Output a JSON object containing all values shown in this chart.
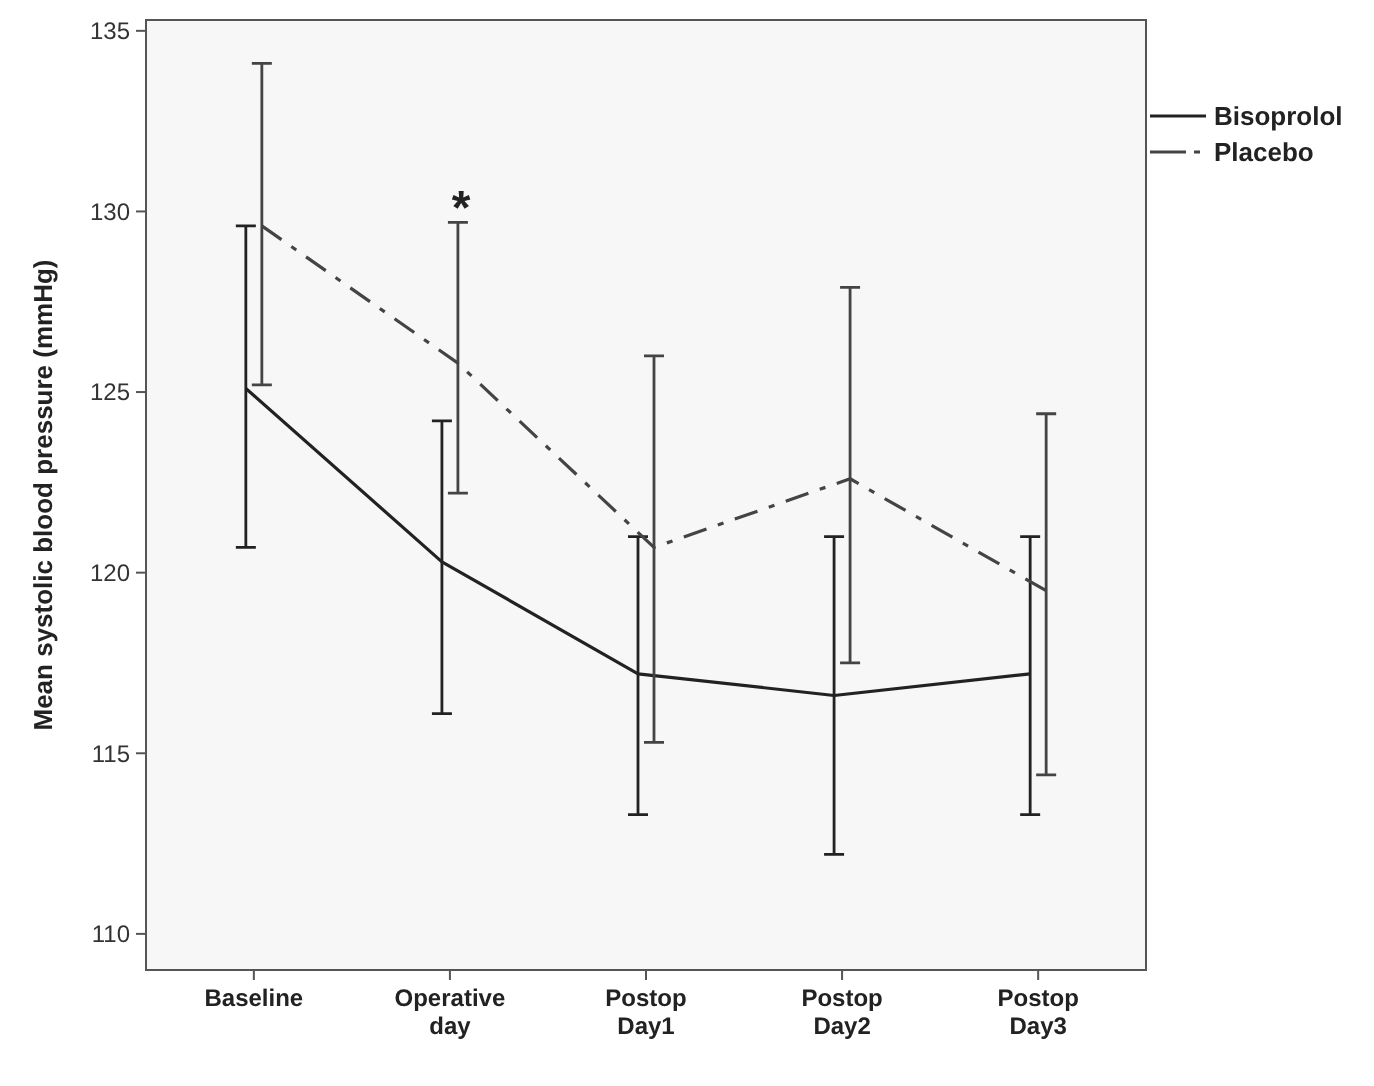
{
  "chart_data": {
    "type": "line",
    "ylabel": "Mean systolic blood pressure (mmHg)",
    "categories": [
      "Baseline",
      "Operative day",
      "Postop Day1",
      "Postop Day2",
      "Postop Day3"
    ],
    "series": [
      {
        "name": "Bisoprolol",
        "color": "#222222",
        "line_style": "solid",
        "values": [
          125.1,
          120.3,
          117.2,
          116.6,
          117.2
        ],
        "errors": [
          [
            120.7,
            129.6
          ],
          [
            116.1,
            124.2
          ],
          [
            113.3,
            121.0
          ],
          [
            112.2,
            121.0
          ],
          [
            113.3,
            121.0
          ]
        ]
      },
      {
        "name": "Placebo",
        "color": "#444444",
        "line_style": "dashdot",
        "values": [
          129.6,
          125.8,
          120.7,
          122.6,
          119.5
        ],
        "errors": [
          [
            125.2,
            134.1
          ],
          [
            122.2,
            129.7
          ],
          [
            115.3,
            126.0
          ],
          [
            117.5,
            127.9
          ],
          [
            114.4,
            124.4
          ]
        ]
      }
    ],
    "ylim": [
      109,
      135.3
    ],
    "yticks": [
      110,
      115,
      120,
      125,
      130,
      135
    ],
    "grid": false,
    "legend": "top right",
    "marker": "none",
    "annotations": [
      "*"
    ]
  }
}
